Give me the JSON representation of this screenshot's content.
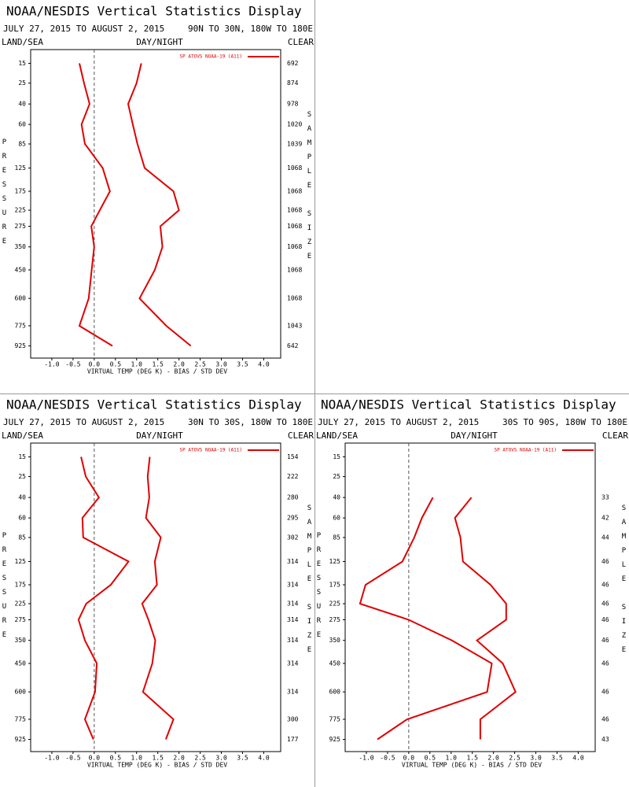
{
  "chart_data": [
    {
      "type": "line",
      "orientation": "horizontal",
      "title": "NOAA/NESDIS Vertical Statistics Display",
      "subtitle": "JULY 27, 2015 TO AUGUST 2, 2015",
      "region": "90N TO 30N, 180W TO 180E",
      "corner_labels": {
        "left": "LAND/SEA",
        "center": "DAY/NIGHT",
        "right": "CLEAR"
      },
      "ylabel": "PRESSURE",
      "y2label": "SAMPLE SIZE",
      "xlabel": "VIRTUAL TEMP (DEG K) - BIAS / STD DEV",
      "y": [
        15,
        25,
        40,
        60,
        85,
        125,
        175,
        225,
        275,
        350,
        450,
        600,
        775,
        925
      ],
      "sample_size": [
        692,
        874,
        978,
        1020,
        1039,
        1068,
        1068,
        1068,
        1068,
        1068,
        1068,
        1068,
        1043,
        642
      ],
      "series": [
        {
          "name": "SP ATOVS NOAA-19 (A11)",
          "color": "#e00000",
          "values": [
            -0.35,
            -0.24,
            -0.11,
            -0.3,
            -0.22,
            0.2,
            0.37,
            0.13,
            -0.07,
            0.0,
            -0.06,
            -0.13,
            -0.35,
            0.43
          ]
        },
        {
          "color": "#e00000",
          "values": [
            1.11,
            1.0,
            0.8,
            0.91,
            1.02,
            1.19,
            1.87,
            2.0,
            1.56,
            1.61,
            1.43,
            1.07,
            1.7,
            2.28
          ]
        }
      ],
      "xlim": [
        -1.5,
        4.4
      ],
      "xticks": [
        {
          "value": -1,
          "label": "-1.0"
        },
        -0.5,
        {
          "value": 0,
          "label": "0.0"
        },
        0.5,
        {
          "value": 1,
          "label": "1.0"
        },
        1.5,
        {
          "value": 2,
          "label": "2.0"
        },
        2.5,
        {
          "value": 3,
          "label": "3.0"
        },
        3.5,
        {
          "value": 4,
          "label": "4.0"
        }
      ],
      "ylim": [
        10,
        1025
      ],
      "yscale": "power",
      "yexponent": 0.286,
      "zero_line": "dashed"
    },
    {
      "type": "line",
      "orientation": "horizontal",
      "title": "NOAA/NESDIS Vertical Statistics Display",
      "subtitle": "JULY 27, 2015 TO AUGUST 2, 2015",
      "region": "30N TO 30S, 180W TO 180E",
      "corner_labels": {
        "left": "LAND/SEA",
        "center": "DAY/NIGHT",
        "right": "CLEAR"
      },
      "ylabel": "PRESSURE",
      "y2label": "SAMPLE SIZE",
      "xlabel": "VIRTUAL TEMP (DEG K) - BIAS / STD DEV",
      "y": [
        15,
        25,
        40,
        60,
        85,
        125,
        175,
        225,
        275,
        350,
        450,
        600,
        775,
        925
      ],
      "sample_size": [
        154,
        222,
        280,
        295,
        302,
        314,
        314,
        314,
        314,
        314,
        314,
        314,
        300,
        177
      ],
      "series": [
        {
          "name": "SP ATOVS NOAA-19 (A11)",
          "color": "#e00000",
          "values": [
            -0.31,
            -0.2,
            0.11,
            -0.28,
            -0.26,
            0.81,
            0.39,
            -0.19,
            -0.37,
            -0.22,
            0.06,
            0.02,
            -0.22,
            -0.02
          ]
        },
        {
          "color": "#e00000",
          "values": [
            1.31,
            1.26,
            1.3,
            1.22,
            1.57,
            1.43,
            1.48,
            1.13,
            1.28,
            1.44,
            1.37,
            1.15,
            1.87,
            1.69
          ]
        }
      ],
      "xlim": [
        -1.5,
        4.4
      ],
      "xticks": [
        {
          "value": -1,
          "label": "-1.0"
        },
        -0.5,
        {
          "value": 0,
          "label": "0.0"
        },
        0.5,
        {
          "value": 1,
          "label": "1.0"
        },
        1.5,
        {
          "value": 2,
          "label": "2.0"
        },
        2.5,
        {
          "value": 3,
          "label": "3.0"
        },
        3.5,
        {
          "value": 4,
          "label": "4.0"
        }
      ],
      "ylim": [
        10,
        1025
      ],
      "yscale": "power",
      "yexponent": 0.286,
      "zero_line": "dashed"
    },
    {
      "type": "line",
      "orientation": "horizontal",
      "title": "NOAA/NESDIS Vertical Statistics Display",
      "subtitle": "JULY 27, 2015 TO AUGUST 2, 2015",
      "region": "30S TO 90S, 180W TO 180E",
      "corner_labels": {
        "left": "LAND/SEA",
        "center": "DAY/NIGHT",
        "right": "CLEAR"
      },
      "ylabel": "PRESSURE",
      "y2label": "SAMPLE SIZE",
      "xlabel": "VIRTUAL TEMP (DEG K) - BIAS / STD DEV",
      "y": [
        15,
        25,
        40,
        60,
        85,
        125,
        175,
        225,
        275,
        350,
        450,
        600,
        775,
        925
      ],
      "sample_size": [
        null,
        null,
        33,
        42,
        44,
        46,
        46,
        46,
        46,
        46,
        46,
        46,
        46,
        43
      ],
      "series": [
        {
          "name": "SP ATOVS NOAA-19 (A11)",
          "color": "#e00000",
          "values": [
            null,
            null,
            0.57,
            0.31,
            0.13,
            -0.15,
            -1.02,
            -1.15,
            0.0,
            1.02,
            1.96,
            1.85,
            -0.04,
            -0.74
          ]
        },
        {
          "color": "#e00000",
          "values": [
            null,
            null,
            1.48,
            1.09,
            1.22,
            1.28,
            1.93,
            2.3,
            2.3,
            1.61,
            2.22,
            2.52,
            1.69,
            1.69
          ]
        }
      ],
      "xlim": [
        -1.5,
        4.4
      ],
      "xticks": [
        {
          "value": -1,
          "label": "-1.0"
        },
        -0.5,
        {
          "value": 0,
          "label": "0.0"
        },
        0.5,
        {
          "value": 1,
          "label": "1.0"
        },
        1.5,
        {
          "value": 2,
          "label": "2.0"
        },
        2.5,
        {
          "value": 3,
          "label": "3.0"
        },
        3.5,
        {
          "value": 4,
          "label": "4.0"
        }
      ],
      "ylim": [
        10,
        1025
      ],
      "yscale": "power",
      "yexponent": 0.286,
      "zero_line": "dashed"
    }
  ]
}
